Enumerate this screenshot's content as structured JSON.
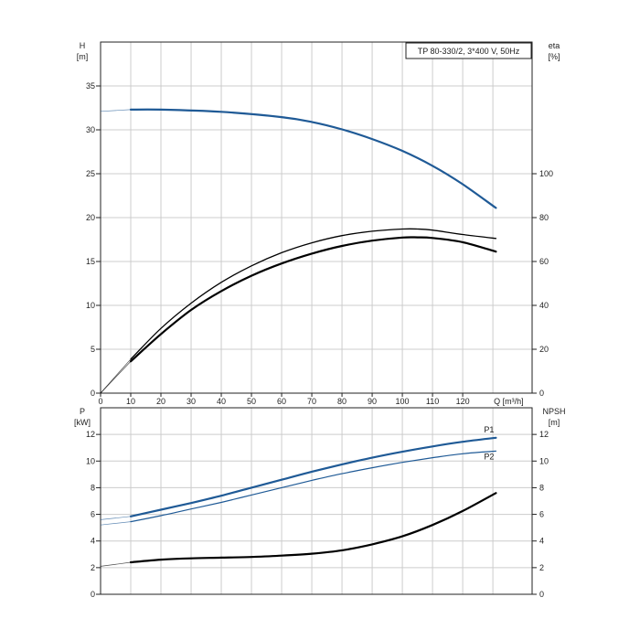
{
  "chart_data": [
    {
      "type": "line",
      "title": "TP 80-330/2, 3*400 V, 50Hz",
      "xlabel": "Q [m³/h]",
      "x_label_text": "Q [m³/h]",
      "xlim": [
        0,
        143
      ],
      "x_ticks": [
        0,
        10,
        20,
        30,
        40,
        50,
        60,
        70,
        80,
        90,
        100,
        110,
        120
      ],
      "y_left_label": [
        "H",
        "[m]"
      ],
      "ylim_left": [
        0,
        40
      ],
      "y_left_ticks": [
        0,
        5,
        10,
        15,
        20,
        25,
        30,
        35
      ],
      "y_right_label": [
        "eta",
        "[%]"
      ],
      "ylim_right": [
        0,
        160
      ],
      "y_right_ticks": [
        0,
        20,
        40,
        60,
        80,
        100
      ],
      "grid": true,
      "series": [
        {
          "axis": "left",
          "color": "#1f5a96",
          "data": [
            [
              0,
              32.1
            ],
            [
              10,
              32.3
            ],
            [
              20,
              32.3
            ],
            [
              40,
              32.05
            ],
            [
              60,
              31.45
            ],
            [
              70,
              30.9
            ],
            [
              80,
              30.05
            ],
            [
              90,
              28.95
            ],
            [
              100,
              27.6
            ],
            [
              110,
              25.9
            ],
            [
              120,
              23.8
            ],
            [
              131,
              21.1
            ]
          ],
          "extended_from": 0,
          "start": 10
        },
        {
          "axis": "right",
          "color": "#000000",
          "data": [
            [
              0,
              0
            ],
            [
              10,
              15.5
            ],
            [
              20,
              29.5
            ],
            [
              30,
              41
            ],
            [
              40,
              50.5
            ],
            [
              50,
              58
            ],
            [
              60,
              64
            ],
            [
              70,
              68.5
            ],
            [
              80,
              71.8
            ],
            [
              90,
              73.8
            ],
            [
              100,
              74.8
            ],
            [
              105,
              74.8
            ],
            [
              110,
              74.3
            ],
            [
              120,
              72.3
            ],
            [
              131,
              70.5
            ]
          ],
          "extended_from": 0,
          "start": 10
        },
        {
          "axis": "right",
          "color": "#000000",
          "data": [
            [
              0,
              0
            ],
            [
              10,
              14.5
            ],
            [
              20,
              26.9
            ],
            [
              30,
              37.9
            ],
            [
              40,
              46.5
            ],
            [
              50,
              53.5
            ],
            [
              60,
              59.1
            ],
            [
              70,
              63.6
            ],
            [
              80,
              67.1
            ],
            [
              90,
              69.5
            ],
            [
              100,
              70.9
            ],
            [
              105,
              71
            ],
            [
              110,
              70.7
            ],
            [
              120,
              68.8
            ],
            [
              131,
              64.5
            ]
          ],
          "extended_from": 0,
          "start": 10,
          "thick": true
        }
      ]
    },
    {
      "type": "line",
      "xlim": [
        0,
        143
      ],
      "y_left_label": [
        "P",
        "[kW]"
      ],
      "ylim_left": [
        0,
        14
      ],
      "y_left_ticks": [
        0,
        2,
        4,
        6,
        8,
        10,
        12
      ],
      "y_right_label": [
        "NPSH",
        "[m]"
      ],
      "ylim_right": [
        0,
        14
      ],
      "y_right_ticks": [
        0,
        2,
        4,
        6,
        8,
        10,
        12
      ],
      "grid": true,
      "series": [
        {
          "name": "P1",
          "axis": "left",
          "color": "#1f5a96",
          "data": [
            [
              0,
              5.6
            ],
            [
              10,
              5.85
            ],
            [
              20,
              6.35
            ],
            [
              30,
              6.85
            ],
            [
              40,
              7.4
            ],
            [
              50,
              8.0
            ],
            [
              60,
              8.6
            ],
            [
              70,
              9.2
            ],
            [
              80,
              9.75
            ],
            [
              90,
              10.25
            ],
            [
              100,
              10.7
            ],
            [
              110,
              11.1
            ],
            [
              120,
              11.45
            ],
            [
              131,
              11.75
            ]
          ],
          "extended_from": 0,
          "start": 10
        },
        {
          "name": "P2",
          "axis": "left",
          "color": "#1f5a96",
          "data": [
            [
              0,
              5.2
            ],
            [
              10,
              5.45
            ],
            [
              20,
              5.9
            ],
            [
              30,
              6.4
            ],
            [
              40,
              6.9
            ],
            [
              50,
              7.45
            ],
            [
              60,
              8.0
            ],
            [
              70,
              8.55
            ],
            [
              80,
              9.05
            ],
            [
              90,
              9.5
            ],
            [
              100,
              9.9
            ],
            [
              110,
              10.25
            ],
            [
              120,
              10.55
            ],
            [
              131,
              10.75
            ]
          ],
          "extended_from": 0,
          "start": 10,
          "thin": true
        },
        {
          "axis": "right",
          "color": "#000000",
          "data": [
            [
              0,
              2.1
            ],
            [
              10,
              2.4
            ],
            [
              20,
              2.6
            ],
            [
              30,
              2.7
            ],
            [
              40,
              2.75
            ],
            [
              50,
              2.8
            ],
            [
              60,
              2.9
            ],
            [
              70,
              3.05
            ],
            [
              80,
              3.3
            ],
            [
              90,
              3.75
            ],
            [
              100,
              4.35
            ],
            [
              110,
              5.2
            ],
            [
              120,
              6.25
            ],
            [
              131,
              7.6
            ]
          ],
          "extended_from": 0,
          "start": 10
        }
      ]
    }
  ]
}
